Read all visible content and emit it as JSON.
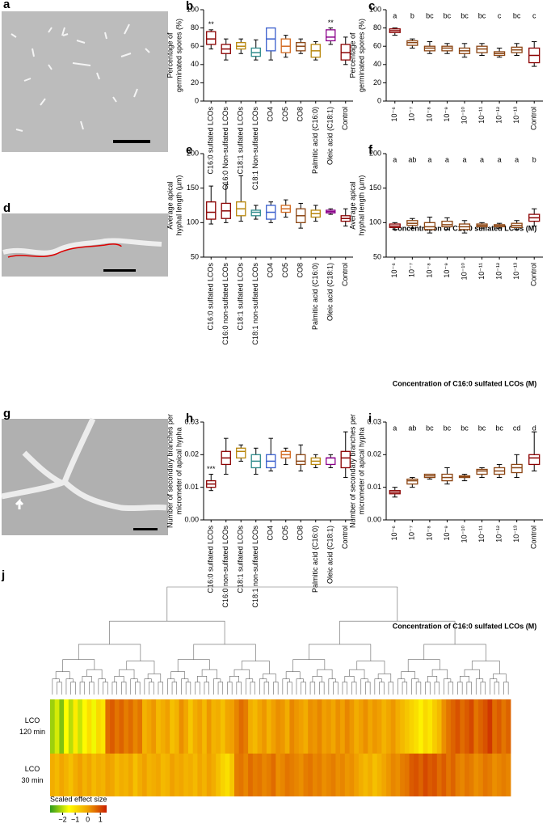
{
  "images": [
    {
      "label": "a"
    },
    {
      "label": "d"
    },
    {
      "label": "g"
    }
  ],
  "chart_data": [
    {
      "type": "box",
      "panel": "b",
      "ylabel": [
        "Percentage of",
        "germinated spores (%)"
      ],
      "categories": [
        "C16:0 sulfated LCOs",
        "C16:0 Non-sulfated LCOs",
        "C18:1 sulfated LCOs",
        "C18:1 Non-sulfated LCOs",
        "CO4",
        "CO5",
        "CO8",
        "Palmitic acid (C16:0)",
        "Oleic acid (C18:1)",
        "Control"
      ],
      "values": [
        [
          57,
          62,
          68,
          76,
          78
        ],
        [
          45,
          52,
          57,
          62,
          68
        ],
        [
          52,
          57,
          60,
          64,
          68
        ],
        [
          45,
          49,
          53,
          58,
          67
        ],
        [
          45,
          55,
          68,
          80,
          80
        ],
        [
          48,
          53,
          60,
          68,
          72
        ],
        [
          52,
          55,
          60,
          64,
          68
        ],
        [
          45,
          48,
          55,
          62,
          65
        ],
        [
          62,
          66,
          70,
          78,
          80
        ],
        [
          40,
          45,
          53,
          62,
          70
        ]
      ],
      "colors": [
        "#8b0000",
        "#8b0000",
        "#b8860b",
        "#2e8b8b",
        "#3a5fcd",
        "#d2691e",
        "#8b4513",
        "#b8860b",
        "#8b008b",
        "#8b0000"
      ],
      "annotations": [
        "**",
        null,
        null,
        null,
        null,
        null,
        null,
        null,
        "**",
        null
      ],
      "ylim": [
        0,
        100
      ],
      "yticks": [
        0,
        20,
        40,
        60,
        80,
        100
      ]
    },
    {
      "type": "box",
      "panel": "c",
      "ylabel": [
        "Percentage of",
        "germinated spores (%)"
      ],
      "xlabel": "Concentration of C16:0 sulfated LCOs (M)",
      "categories": [
        "10⁻⁶",
        "10⁻⁷",
        "10⁻⁸",
        "10⁻⁹",
        "10⁻¹⁰",
        "10⁻¹¹",
        "10⁻¹²",
        "10⁻¹³",
        "Control"
      ],
      "values": [
        [
          72,
          75,
          77,
          79,
          80
        ],
        [
          58,
          61,
          64,
          66,
          68
        ],
        [
          52,
          55,
          58,
          60,
          65
        ],
        [
          52,
          55,
          58,
          60,
          63
        ],
        [
          48,
          52,
          55,
          58,
          63
        ],
        [
          50,
          53,
          57,
          60,
          63
        ],
        [
          48,
          50,
          52,
          54,
          58
        ],
        [
          50,
          53,
          56,
          59,
          63
        ],
        [
          38,
          42,
          50,
          58,
          65
        ]
      ],
      "colors": [
        "#8b0000",
        "#8b4513",
        "#8b4513",
        "#8b4513",
        "#8b4513",
        "#8b4513",
        "#8b4513",
        "#8b4513",
        "#8b0000"
      ],
      "annotations": [
        "a",
        "b",
        "bc",
        "bc",
        "bc",
        "bc",
        "c",
        "bc",
        "c"
      ],
      "ylim": [
        0,
        100
      ],
      "yticks": [
        0,
        20,
        40,
        60,
        80,
        100
      ]
    },
    {
      "type": "box",
      "panel": "e",
      "ylabel": [
        "Average apical",
        "hyphal length (µm)"
      ],
      "categories": [
        "C16:0 sulfated LCOs",
        "C16:0 non-sulfated LCOs",
        "C18:1 sulfated LCOs",
        "C18:1 non-sulfated LCOs",
        "CO4",
        "CO5",
        "CO8",
        "Palmitic acid (C16:0)",
        "Oleic acid (C18:1)",
        "Control"
      ],
      "values": [
        [
          98,
          105,
          115,
          130,
          153
        ],
        [
          100,
          106,
          117,
          128,
          155
        ],
        [
          102,
          110,
          120,
          130,
          168
        ],
        [
          105,
          110,
          115,
          118,
          125
        ],
        [
          100,
          105,
          115,
          125,
          130
        ],
        [
          108,
          115,
          120,
          125,
          133
        ],
        [
          92,
          100,
          110,
          120,
          128
        ],
        [
          102,
          108,
          113,
          118,
          125
        ],
        [
          112,
          114,
          116,
          118,
          120
        ],
        [
          95,
          102,
          106,
          110,
          120
        ]
      ],
      "colors": [
        "#8b0000",
        "#8b0000",
        "#b8860b",
        "#2e8b8b",
        "#3a5fcd",
        "#d2691e",
        "#8b4513",
        "#b8860b",
        "#8b008b",
        "#8b0000"
      ],
      "ylim": [
        50,
        200
      ],
      "yticks": [
        50,
        100,
        150,
        200
      ]
    },
    {
      "type": "box",
      "panel": "f",
      "ylabel": [
        "Average apical",
        "hyphal length (µm)"
      ],
      "xlabel": "Concentration of C16:0 sulfated LCOs (M)",
      "categories": [
        "10⁻⁶",
        "10⁻⁷",
        "10⁻⁸",
        "10⁻⁹",
        "10⁻¹⁰",
        "10⁻¹¹",
        "10⁻¹²",
        "10⁻¹³",
        "Control"
      ],
      "values": [
        [
          90,
          93,
          95,
          98,
          100
        ],
        [
          92,
          96,
          99,
          103,
          106
        ],
        [
          85,
          90,
          94,
          100,
          108
        ],
        [
          90,
          94,
          97,
          102,
          107
        ],
        [
          85,
          90,
          94,
          98,
          103
        ],
        [
          92,
          94,
          96,
          98,
          100
        ],
        [
          92,
          94,
          96,
          97,
          99
        ],
        [
          90,
          93,
          96,
          99,
          103
        ],
        [
          95,
          102,
          107,
          112,
          120
        ]
      ],
      "colors": [
        "#8b0000",
        "#8b4513",
        "#8b4513",
        "#8b4513",
        "#8b4513",
        "#8b4513",
        "#8b4513",
        "#8b4513",
        "#8b0000"
      ],
      "annotations": [
        "a",
        "ab",
        "a",
        "a",
        "a",
        "a",
        "a",
        "a",
        "b"
      ],
      "ylim": [
        50,
        200
      ],
      "yticks": [
        50,
        100,
        150,
        200
      ]
    },
    {
      "type": "box",
      "panel": "h",
      "ylabel": [
        "Number of secondary branches per",
        "micrometer of apical hypha"
      ],
      "categories": [
        "C16:0 sulfated LCOs",
        "C16:0 non-sulfated LCOs",
        "C18:1 sulfated LCOs",
        "C18:1 non-sulfated LCOs",
        "CO4",
        "CO5",
        "CO8",
        "Palmitic acid (C16:0)",
        "Oleic acid (C18:1)",
        "Control"
      ],
      "values": [
        [
          0.009,
          0.01,
          0.011,
          0.012,
          0.014
        ],
        [
          0.014,
          0.017,
          0.019,
          0.021,
          0.025
        ],
        [
          0.018,
          0.019,
          0.021,
          0.022,
          0.023
        ],
        [
          0.014,
          0.016,
          0.018,
          0.02,
          0.022
        ],
        [
          0.015,
          0.016,
          0.018,
          0.02,
          0.025
        ],
        [
          0.017,
          0.019,
          0.02,
          0.021,
          0.022
        ],
        [
          0.015,
          0.017,
          0.018,
          0.02,
          0.023
        ],
        [
          0.016,
          0.017,
          0.018,
          0.019,
          0.02
        ],
        [
          0.016,
          0.017,
          0.019,
          0.019,
          0.02
        ],
        [
          0.013,
          0.016,
          0.019,
          0.021,
          0.027
        ]
      ],
      "colors": [
        "#8b0000",
        "#8b0000",
        "#b8860b",
        "#2e8b8b",
        "#3a5fcd",
        "#d2691e",
        "#8b4513",
        "#b8860b",
        "#8b008b",
        "#8b0000"
      ],
      "annotations": [
        "***",
        null,
        null,
        null,
        null,
        null,
        null,
        null,
        null,
        null
      ],
      "ylim": [
        0,
        0.03
      ],
      "yticks": [
        {
          "value": 0,
          "label": "0.00"
        },
        {
          "value": 0.01,
          "label": "0.01"
        },
        {
          "value": 0.02,
          "label": "0.02"
        },
        {
          "value": 0.03,
          "label": "0.03"
        }
      ]
    },
    {
      "type": "box",
      "panel": "i",
      "ylabel": [
        "Number of secondary branches per",
        "micrometer of apical hypha"
      ],
      "xlabel": "Concentration of C16:0 sulfated LCOs (M)",
      "categories": [
        "10⁻⁶",
        "10⁻⁷",
        "10⁻⁸",
        "10⁻⁹",
        "10⁻¹⁰",
        "10⁻¹¹",
        "10⁻¹²",
        "10⁻¹³",
        "Control"
      ],
      "values": [
        [
          0.007,
          0.008,
          0.0085,
          0.009,
          0.01
        ],
        [
          0.01,
          0.011,
          0.012,
          0.0125,
          0.013
        ],
        [
          0.0125,
          0.013,
          0.0135,
          0.014,
          0.014
        ],
        [
          0.011,
          0.012,
          0.013,
          0.014,
          0.016
        ],
        [
          0.012,
          0.013,
          0.0132,
          0.0135,
          0.014
        ],
        [
          0.013,
          0.014,
          0.015,
          0.0155,
          0.016
        ],
        [
          0.013,
          0.014,
          0.015,
          0.016,
          0.017
        ],
        [
          0.013,
          0.0145,
          0.016,
          0.017,
          0.02
        ],
        [
          0.015,
          0.017,
          0.019,
          0.02,
          0.027
        ]
      ],
      "colors": [
        "#8b0000",
        "#8b4513",
        "#8b4513",
        "#8b4513",
        "#8b4513",
        "#8b4513",
        "#8b4513",
        "#8b4513",
        "#8b0000"
      ],
      "annotations": [
        "a",
        "ab",
        "bc",
        "bc",
        "bc",
        "bc",
        "bc",
        "cd",
        "d"
      ],
      "ylim": [
        0,
        0.03
      ],
      "yticks": [
        {
          "value": 0,
          "label": "0.00"
        },
        {
          "value": 0.01,
          "label": "0.01"
        },
        {
          "value": 0.02,
          "label": "0.02"
        },
        {
          "value": 0.03,
          "label": "0.03"
        }
      ]
    },
    {
      "type": "heatmap",
      "panel": "j",
      "row_labels": [
        [
          "LCO",
          "120 min"
        ],
        [
          "LCO",
          "30 min"
        ]
      ],
      "values": [
        [
          -2.2,
          -1.8,
          -2.4,
          -1.5,
          -2.0,
          -1.2,
          -1.9,
          -1.4,
          -1.0,
          -1.6,
          -0.9,
          -1.1,
          0.6,
          0.8,
          0.5,
          0.7,
          0.4,
          0.6,
          0.3,
          0.5,
          -0.3,
          -0.1,
          0.1,
          -0.4,
          -0.2,
          0.0,
          -0.5,
          -0.3,
          0.2,
          -0.1,
          -0.6,
          -0.2,
          0.0,
          -0.4,
          0.1,
          -0.3,
          -0.2,
          -0.5,
          -0.1,
          0.0,
          0.3,
          0.6,
          0.4,
          -0.2,
          -0.4,
          -0.1,
          0.1,
          -0.3,
          0.0,
          0.2,
          0.1,
          -0.2,
          0.3,
          0.1,
          0.0,
          -0.2,
          0.2,
          0.1,
          0.3,
          0.0,
          0.1,
          -0.1,
          0.2,
          0.0,
          0.3,
          0.1,
          -0.2,
          0.0,
          0.2,
          -0.1,
          0.1,
          0.0,
          -0.3,
          -0.1,
          0.1,
          -0.2,
          -0.4,
          -0.6,
          -0.8,
          -1.0,
          -1.3,
          -0.9,
          -1.1,
          -0.7,
          -0.4,
          0.2,
          0.5,
          0.7,
          0.9,
          0.6,
          0.8,
          1.0,
          0.5,
          0.7,
          0.9,
          1.2,
          0.6,
          0.8,
          0.5,
          0.7
        ],
        [
          -0.2,
          -0.4,
          -0.1,
          -0.3,
          -0.5,
          -0.2,
          0.0,
          -0.3,
          -0.1,
          -0.4,
          -0.2,
          -0.3,
          0.0,
          -0.1,
          -0.4,
          -0.2,
          -0.3,
          -0.1,
          -0.5,
          -0.2,
          0.0,
          -0.3,
          -0.2,
          -0.1,
          -0.4,
          -0.3,
          0.0,
          -0.2,
          -0.1,
          -0.3,
          -0.2,
          -0.4,
          -0.1,
          -0.3,
          0.0,
          -0.2,
          -0.5,
          -0.8,
          -1.0,
          -0.6,
          0.4,
          0.5,
          0.3,
          0.6,
          0.4,
          0.5,
          0.3,
          0.4,
          0.6,
          0.2,
          0.3,
          0.5,
          0.4,
          0.3,
          0.2,
          0.4,
          0.5,
          0.3,
          0.4,
          0.2,
          0.3,
          0.4,
          0.2,
          0.3,
          0.1,
          0.2,
          0.0,
          -0.2,
          -0.4,
          -0.2,
          -0.5,
          -0.3,
          -0.1,
          0.1,
          0.3,
          0.2,
          0.4,
          0.5,
          0.8,
          0.9,
          0.7,
          1.0,
          0.8,
          0.9,
          0.6,
          0.8,
          0.5,
          0.7,
          0.4,
          0.3,
          0.5,
          0.4,
          0.2,
          0.3,
          0.5,
          0.4,
          0.2,
          0.3,
          0.4,
          0.3
        ]
      ],
      "colorbar_label": "Scaled effect size",
      "clim": [
        -3,
        1.5
      ],
      "colormap": [
        "#2c9a1c",
        "#ffff00",
        "#f0a000",
        "#c81e00"
      ],
      "cticks": [
        {
          "value": -2,
          "label": "−2"
        },
        {
          "value": -1,
          "label": "−1"
        },
        0,
        1
      ]
    }
  ]
}
